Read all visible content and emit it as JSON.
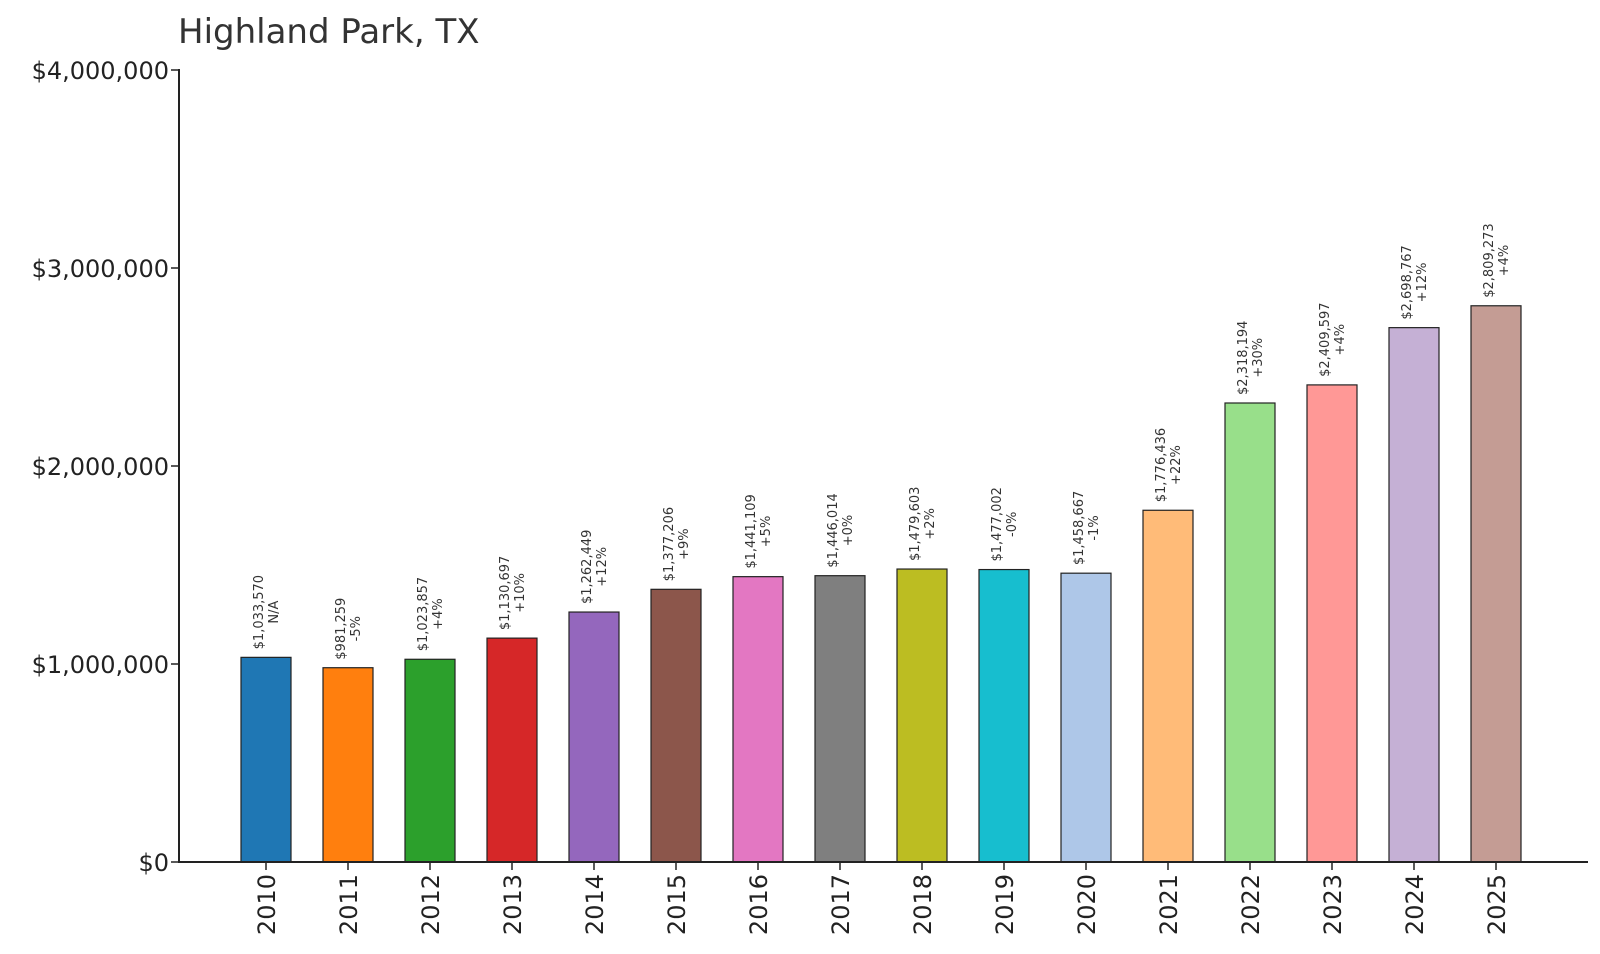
{
  "chart_data": {
    "type": "bar",
    "title": "Highland Park, TX",
    "xlabel": "",
    "ylabel": "",
    "ylim": [
      0,
      4000000
    ],
    "grid": false,
    "yticks": [
      {
        "value": 0,
        "label": "$0"
      },
      {
        "value": 1000000,
        "label": "$1,000,000"
      },
      {
        "value": 2000000,
        "label": "$2,000,000"
      },
      {
        "value": 3000000,
        "label": "$3,000,000"
      },
      {
        "value": 4000000,
        "label": "$4,000,000"
      }
    ],
    "categories": [
      "2010",
      "2011",
      "2012",
      "2013",
      "2014",
      "2015",
      "2016",
      "2017",
      "2018",
      "2019",
      "2020",
      "2021",
      "2022",
      "2023",
      "2024",
      "2025"
    ],
    "values": [
      1033570,
      981259,
      1023857,
      1130697,
      1262449,
      1377206,
      1441109,
      1446014,
      1479603,
      1477002,
      1458667,
      1776436,
      2318194,
      2409597,
      2698767,
      2809273
    ],
    "value_labels": [
      "$1,033,570",
      "$981,259",
      "$1,023,857",
      "$1,130,697",
      "$1,262,449",
      "$1,377,206",
      "$1,441,109",
      "$1,446,014",
      "$1,479,603",
      "$1,477,002",
      "$1,458,667",
      "$1,776,436",
      "$2,318,194",
      "$2,409,597",
      "$2,698,767",
      "$2,809,273"
    ],
    "change_labels": [
      "N/A",
      "-5%",
      "+4%",
      "+10%",
      "+12%",
      "+9%",
      "+5%",
      "+0%",
      "+2%",
      "-0%",
      "-1%",
      "+22%",
      "+30%",
      "+4%",
      "+12%",
      "+4%"
    ],
    "colors": [
      "#1f77b4",
      "#ff7f0e",
      "#2ca02c",
      "#d62728",
      "#9467bd",
      "#8c564b",
      "#e377c2",
      "#7f7f7f",
      "#bcbd22",
      "#17becf",
      "#aec7e8",
      "#ffbb78",
      "#98df8a",
      "#ff9896",
      "#c5b0d5",
      "#c49c94"
    ]
  }
}
